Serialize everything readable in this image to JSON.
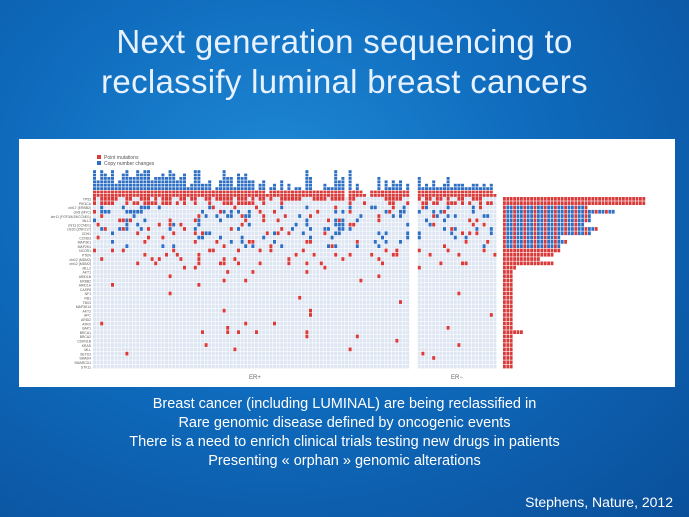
{
  "slide": {
    "title_line1": "Next generation sequencing to",
    "title_line2": "reclassify luminal breast cancers",
    "caption": [
      "Breast cancer (including LUMINAL)  are being reclassified in",
      "Rare genomic disease defined by oncogenic events",
      "There is a need to enrich clinical trials testing new drugs in patients",
      "Presenting « orphan » genomic alterations"
    ],
    "citation": "Stephens, Nature, 2012"
  },
  "figure": {
    "legend": {
      "point": "Point mutations",
      "copy": "Copy number changes"
    },
    "group_labels": {
      "er_pos": "ER+",
      "er_neg": "ER−"
    },
    "colors": {
      "point": "#d93a3a",
      "copy": "#2e6fc4",
      "grid": "#dde6f2"
    },
    "genes": [
      "TP53",
      "PIK3CA",
      "chr17 (ERBB2)",
      "chr8 (MYC)",
      "chr11 (FGF3/4/19/CCND1)",
      "MLL3",
      "chr11 (CCND1)",
      "chr20 (ZNF217)",
      "CDH1",
      "CCND3",
      "MAP3K1",
      "MAP2K4",
      "NCOR1",
      "PTEN",
      "chr12 (MDM2)",
      "chr12 (MDM2)",
      "MLL2",
      "AKT1",
      "ARID1B",
      "ERBB2",
      "ARID1A",
      "CASP8",
      "NF1",
      "RB1",
      "TBX3",
      "MAP3K13",
      "AKT2",
      "APC",
      "ARID2",
      "ATRX",
      "BAP1",
      "BRCA1",
      "BRCA2",
      "CDKN1B",
      "KRAS",
      "MLL",
      "SETD2",
      "SMAD4",
      "SMARCD1",
      "STK11"
    ]
  }
}
